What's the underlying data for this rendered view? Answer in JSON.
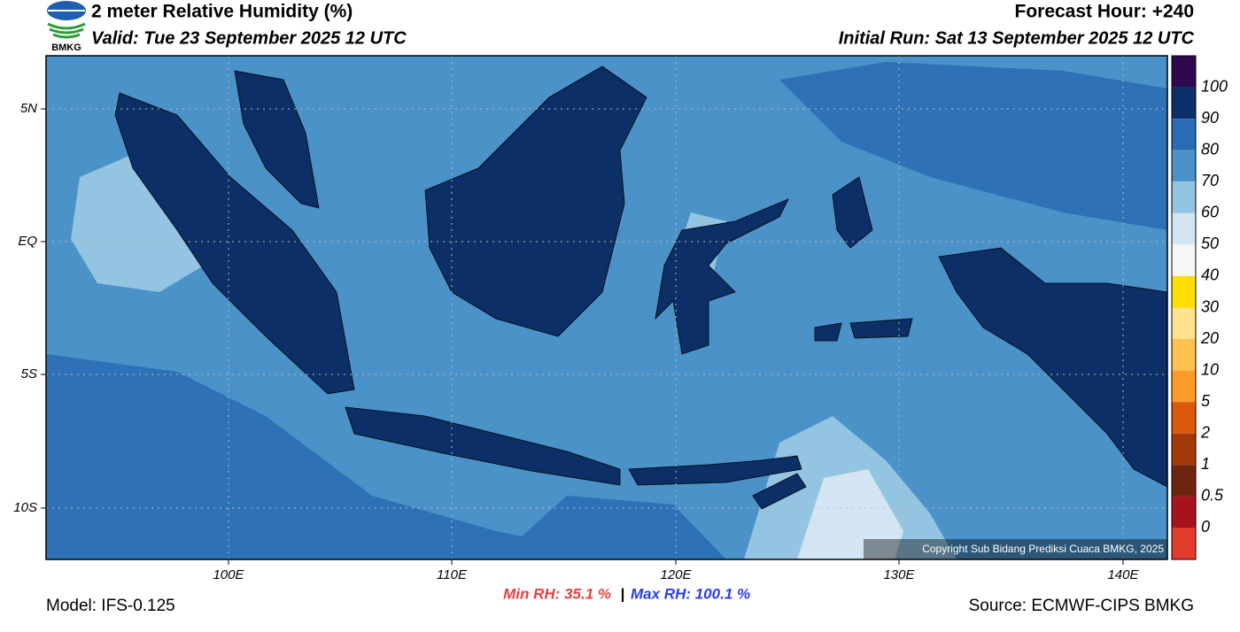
{
  "header": {
    "title": "2 meter Relative Humidity (%)",
    "valid": "Valid: Tue 23 September 2025 12 UTC",
    "forecast_hour": "Forecast Hour: +240",
    "initial_run": "Initial Run: Sat 13 September 2025 12 UTC",
    "logo_text": "BMKG"
  },
  "map": {
    "lat_labels": [
      "5N",
      "EQ",
      "5S",
      "10S"
    ],
    "lon_labels": [
      "100E",
      "110E",
      "120E",
      "130E",
      "140E"
    ],
    "copyright": "Copyright Sub Bidang Prediksi Cuaca BMKG, 2025"
  },
  "colorbar": {
    "labels": [
      100,
      90,
      80,
      70,
      60,
      50,
      40,
      30,
      20,
      10,
      5,
      2,
      1,
      0.5,
      0
    ],
    "colors": [
      "#2d0a4e",
      "#0b2f66",
      "#2a6cb3",
      "#4a92c8",
      "#93c4e2",
      "#d3e5f2",
      "#f6f6f6",
      "#ffde00",
      "#ffe28c",
      "#fdc150",
      "#fb9b2a",
      "#d95a0c",
      "#a33a0a",
      "#6e2510",
      "#a5141c",
      "#e33b2c"
    ]
  },
  "footer": {
    "model": "Model: IFS-0.125",
    "min_rh": "Min RH:  35.1 %",
    "separator": "|",
    "max_rh": "Max RH: 100.1 %",
    "source": "Source: ECMWF-CIPS BMKG"
  }
}
